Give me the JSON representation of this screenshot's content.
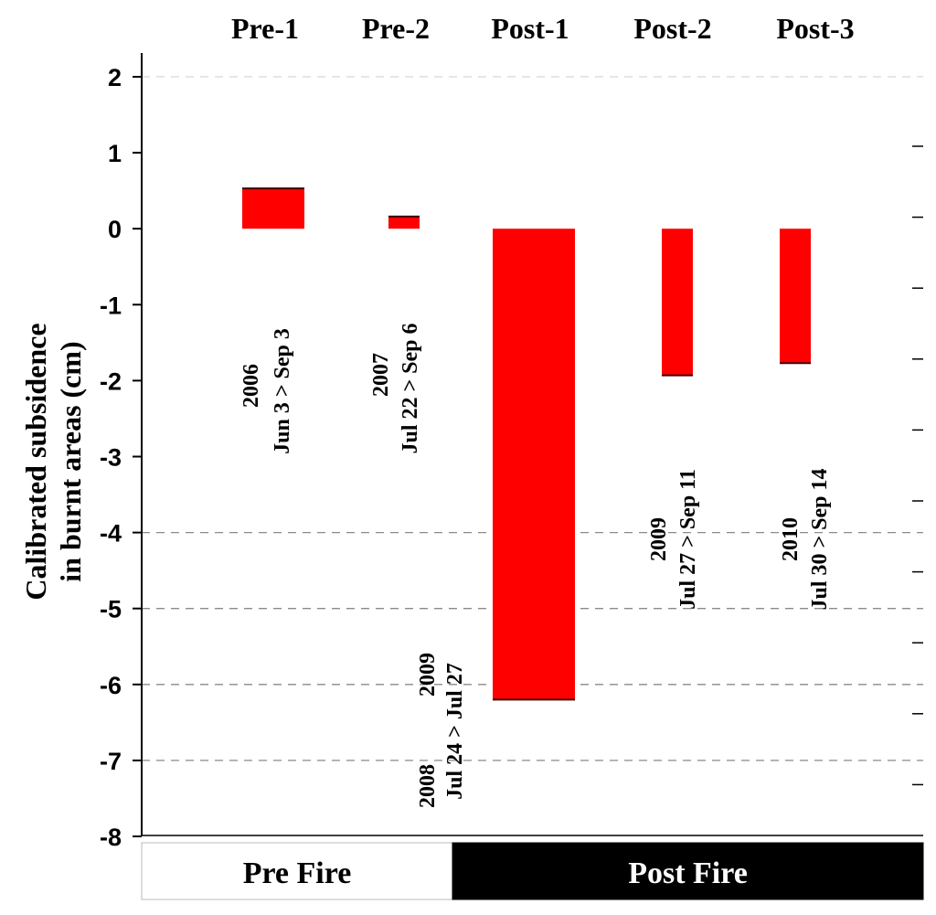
{
  "chart_data": {
    "type": "bar",
    "title": "",
    "ylabel": [
      "Calibrated subsidence",
      "in burnt areas (cm)"
    ],
    "xlabel": "",
    "categories": [
      "Pre-1",
      "Pre-2",
      "Post-1",
      "Post-2",
      "Post-3"
    ],
    "values": [
      0.53,
      0.16,
      -6.2,
      -1.93,
      -1.77
    ],
    "ylim": [
      -8,
      2
    ],
    "yticks": [
      "2",
      "1",
      "0",
      "-1",
      "-2",
      "-3",
      "-4",
      "-5",
      "-6",
      "-7",
      "-8"
    ],
    "gridlines": [
      2,
      -4,
      -5,
      -6,
      -7
    ],
    "bar_color": "#ff0000",
    "annotations": [
      {
        "category": "Pre-1",
        "lines": [
          "2006",
          "Jun 3 > Sep 3"
        ]
      },
      {
        "category": "Pre-2",
        "lines": [
          "2007",
          "Jul 22 > Sep 6"
        ]
      },
      {
        "category": "Post-1",
        "lines": [
          "2008",
          "Jul 24 > Jul 27",
          "2009"
        ]
      },
      {
        "category": "Post-2",
        "lines": [
          "2009",
          "Jul 27 > Sep 11"
        ]
      },
      {
        "category": "Post-3",
        "lines": [
          "2010",
          "Jul 30 > Sep 14"
        ]
      }
    ],
    "panels": [
      {
        "label": "Pre Fire",
        "background": "#ffffff",
        "text_color": "#000000"
      },
      {
        "label": "Post Fire",
        "background": "#000000",
        "text_color": "#ffffff"
      }
    ]
  }
}
